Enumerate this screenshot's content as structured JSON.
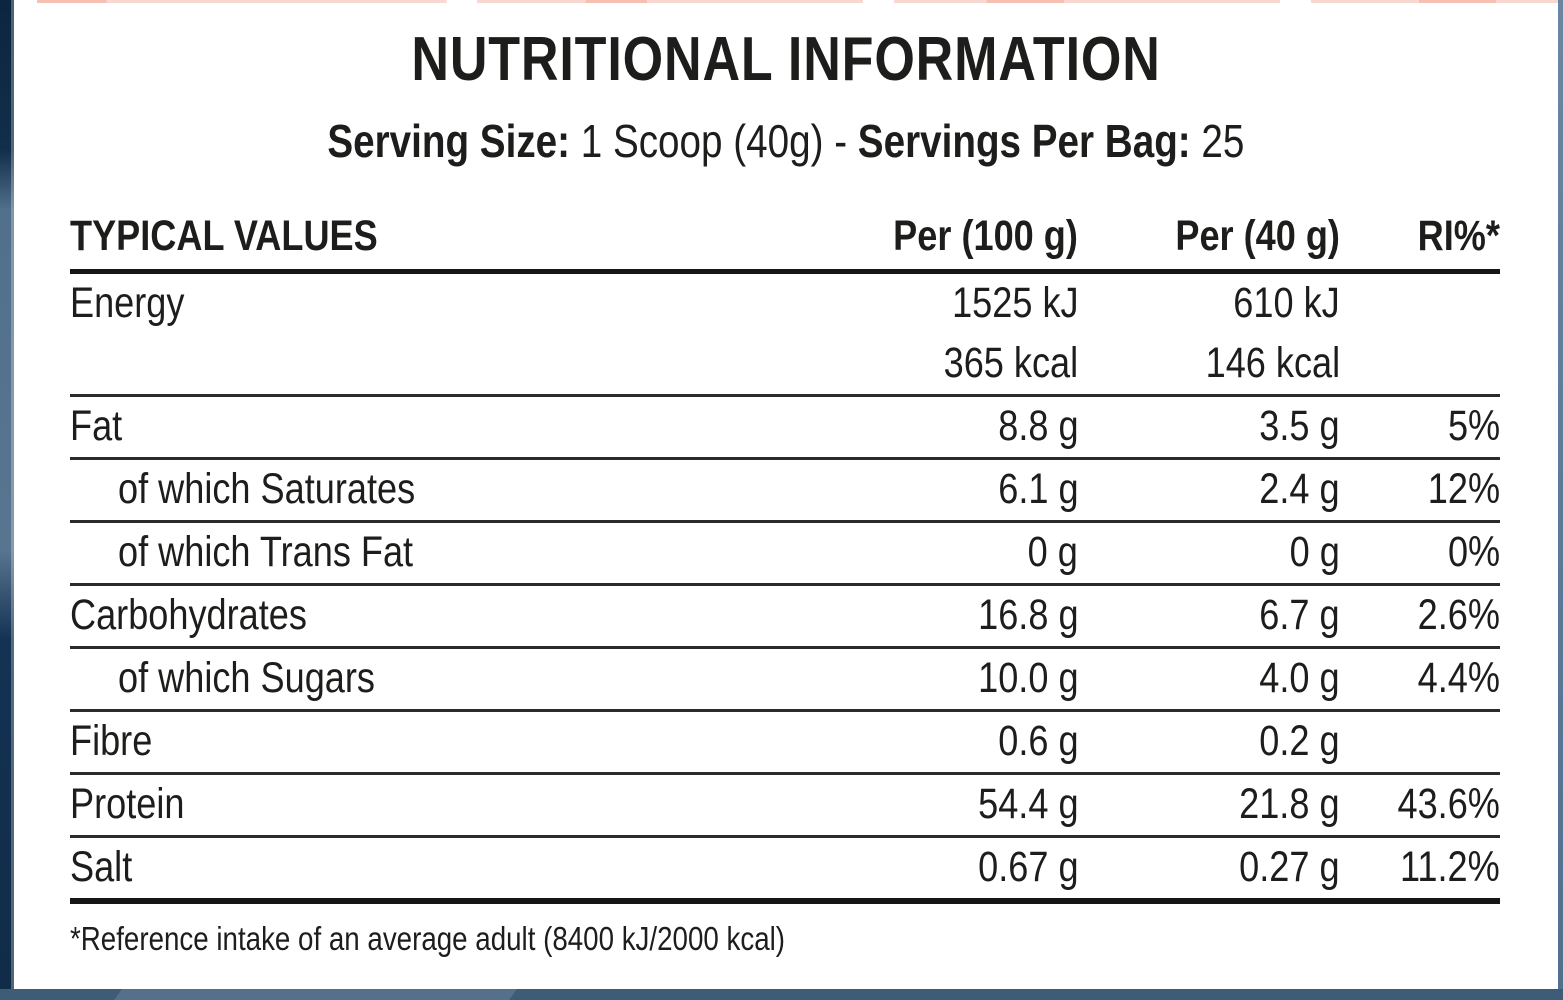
{
  "title": "NUTRITIONAL INFORMATION",
  "serving": {
    "size_label": "Serving Size:",
    "size_value": "1 Scoop (40g)",
    "dash": "-",
    "bag_label": "Servings Per Bag:",
    "bag_value": "25"
  },
  "table": {
    "headers": {
      "values": "TYPICAL VALUES",
      "per100": "Per (100 g)",
      "per40": "Per (40 g)",
      "ri": "RI%*"
    },
    "rows": [
      {
        "label": "Energy",
        "per100": "1525 kJ",
        "per40": "610 kJ",
        "ri": ""
      },
      {
        "label": "",
        "per100": "365 kcal",
        "per40": "146 kcal",
        "ri": ""
      },
      {
        "label": "Fat",
        "per100": "8.8 g",
        "per40": "3.5 g",
        "ri": "5%"
      },
      {
        "label": "of which Saturates",
        "per100": "6.1 g",
        "per40": "2.4 g",
        "ri": "12%"
      },
      {
        "label": "of which Trans Fat",
        "per100": "0 g",
        "per40": "0 g",
        "ri": "0%"
      },
      {
        "label": "Carbohydrates",
        "per100": "16.8 g",
        "per40": "6.7 g",
        "ri": "2.6%"
      },
      {
        "label": "of which Sugars",
        "per100": "10.0 g",
        "per40": "4.0 g",
        "ri": "4.4%"
      },
      {
        "label": "Fibre",
        "per100": "0.6 g",
        "per40": "0.2 g",
        "ri": ""
      },
      {
        "label": "Protein",
        "per100": "54.4 g",
        "per40": "21.8 g",
        "ri": "43.6%"
      },
      {
        "label": "Salt",
        "per100": "0.67 g",
        "per40": "0.27 g",
        "ri": "11.2%"
      }
    ]
  },
  "footnote": "*Reference intake of an average adult (8400 kJ/2000 kcal)",
  "colors": {
    "text": "#1d1d1b",
    "heavy_rule": "#161616",
    "row_divider": "#2b2b2b",
    "left_strip_dark": "#0f2b47",
    "left_strip_mid": "#54728e",
    "right_strip": "#5d7a99",
    "bottom_strip": "#3f5c76",
    "bottom_strip_light": "#54708a",
    "top_strip_salmon": "#f6d0c6",
    "card_background": "#ffffff"
  }
}
